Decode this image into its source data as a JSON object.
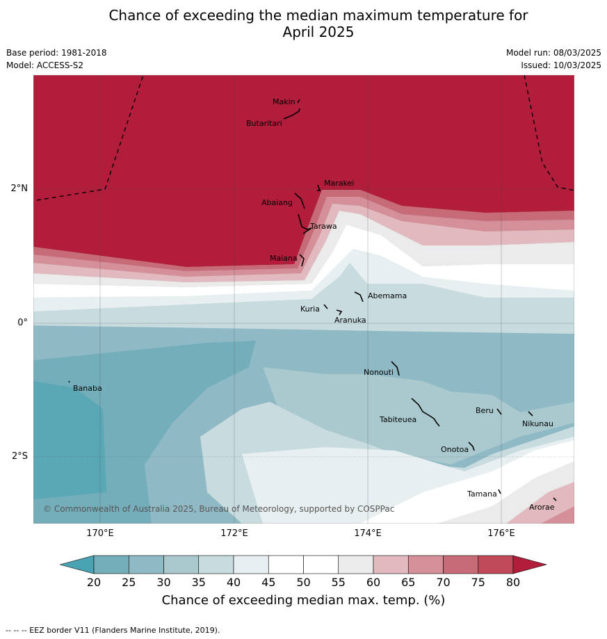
{
  "title": "Chance of exceeding the median maximum temperature for\nApril 2025",
  "meta": {
    "base_period": "Base period: 1981-2018",
    "model": "Model: ACCESS-S2",
    "model_run": "Model run: 08/03/2025",
    "issued": "Issued: 10/03/2025"
  },
  "map": {
    "lat_labels": [
      "2°N",
      "0°",
      "2°S"
    ],
    "lon_labels": [
      "170°E",
      "172°E",
      "174°E",
      "176°E"
    ],
    "places": [
      {
        "name": "Makin"
      },
      {
        "name": "Butaritari"
      },
      {
        "name": "Marakei"
      },
      {
        "name": "Abaiang"
      },
      {
        "name": "Tarawa"
      },
      {
        "name": "Maiana"
      },
      {
        "name": "Abemama"
      },
      {
        "name": "Kuria"
      },
      {
        "name": "Aranuka"
      },
      {
        "name": "Banaba"
      },
      {
        "name": "Nonouti"
      },
      {
        "name": "Tabiteuea"
      },
      {
        "name": "Beru"
      },
      {
        "name": "Nikunau"
      },
      {
        "name": "Onotoa"
      },
      {
        "name": "Tamana"
      },
      {
        "name": "Arorae"
      }
    ],
    "copyright": "© Commonwealth of Australia 2025, Bureau of Meteorology, supported by COSPPac"
  },
  "colorbar": {
    "ticks": [
      "20",
      "25",
      "30",
      "35",
      "40",
      "45",
      "50",
      "55",
      "60",
      "65",
      "70",
      "75",
      "80"
    ],
    "colors": [
      "#5aa7b6",
      "#74aebb",
      "#8fbac5",
      "#a9c9cf",
      "#c8dbdf",
      "#e8eff1",
      "#ffffff",
      "#ffffff",
      "#ecebeb",
      "#e1b9bf",
      "#d48f98",
      "#c86b78",
      "#c04a5a"
    ],
    "below_color": "#4aa3b3",
    "above_color": "#b11d3a",
    "label": "Chance of exceeding median max. temp. (%)"
  },
  "footer": "--  --  -- EEZ border V11 (Flanders Marine Institute, 2019)."
}
